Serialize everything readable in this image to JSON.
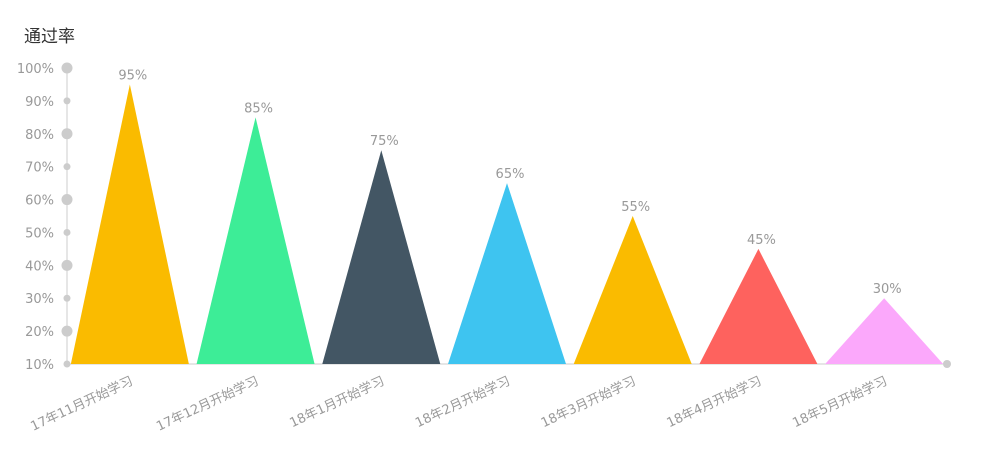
{
  "chart_data": {
    "type": "bar",
    "title": "通过率",
    "xlabel": "",
    "ylabel": "",
    "categories": [
      "17年11月开始学习",
      "17年12月开始学习",
      "18年1月开始学习",
      "18年2月开始学习",
      "18年3月开始学习",
      "18年4月开始学习",
      "18年5月开始学习"
    ],
    "values": [
      95,
      85,
      75,
      65,
      55,
      45,
      30
    ],
    "value_labels": [
      "95%",
      "85%",
      "75%",
      "65%",
      "55%",
      "45%",
      "30%"
    ],
    "ylim": [
      10,
      100
    ],
    "yticks": [
      10,
      20,
      30,
      40,
      50,
      60,
      70,
      80,
      90,
      100
    ],
    "ytick_labels": [
      "10%",
      "20%",
      "30%",
      "40%",
      "50%",
      "60%",
      "70%",
      "80%",
      "90%",
      "100%"
    ],
    "grid": false,
    "legend": "none",
    "mark_shape": "triangle",
    "colors": [
      "#fabb00",
      "#3ded97",
      "#435664",
      "#3ec4f0",
      "#fabb00",
      "#fe625e",
      "#fba8fb"
    ],
    "axis_color": "#cccccc",
    "text_color": "#999999"
  }
}
